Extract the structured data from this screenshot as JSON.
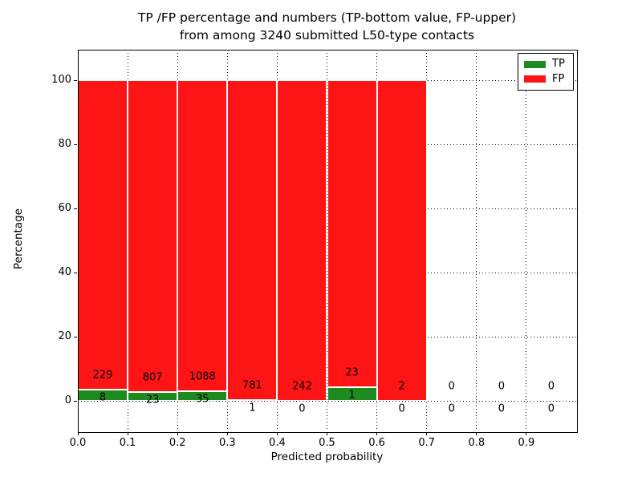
{
  "title": {
    "line1": "TP /FP percentage and numbers (TP-bottom value, FP-upper)",
    "line2": "from among 3240 submitted L50-type contacts"
  },
  "chart_data": {
    "type": "bar",
    "stacked": true,
    "title": "TP /FP percentage and numbers (TP-bottom value, FP-upper) from among 3240 submitted L50-type contacts",
    "xlabel": "Predicted probability",
    "ylabel": "Percentage",
    "xlim": [
      0.0,
      1.0
    ],
    "ylim": [
      -9.5,
      109.5
    ],
    "grid": "dotted",
    "legend_position": "upper-right",
    "bins": [
      0.0,
      0.1,
      0.2,
      0.3,
      0.4,
      0.5,
      0.6,
      0.7,
      0.8,
      0.9
    ],
    "bin_width": 0.1,
    "x_tick_labels": [
      "0.0",
      "0.1",
      "0.2",
      "0.3",
      "0.4",
      "0.5",
      "0.6",
      "0.7",
      "0.8",
      "0.9"
    ],
    "y_ticks": [
      0,
      20,
      40,
      60,
      80,
      100
    ],
    "series": [
      {
        "name": "TP",
        "color": "#1e8b1e",
        "counts": [
          8,
          23,
          35,
          1,
          0,
          1,
          0,
          0,
          0,
          0
        ]
      },
      {
        "name": "FP",
        "color": "#fd1515",
        "counts": [
          229,
          807,
          1088,
          781,
          242,
          23,
          2,
          0,
          0,
          0
        ]
      }
    ],
    "bar_percentages": {
      "TP": [
        3.38,
        2.77,
        3.12,
        0.13,
        0.0,
        4.17,
        0.0,
        null,
        null,
        null
      ],
      "FP": [
        96.62,
        97.23,
        96.88,
        99.87,
        100.0,
        95.83,
        100.0,
        null,
        null,
        null
      ]
    }
  }
}
